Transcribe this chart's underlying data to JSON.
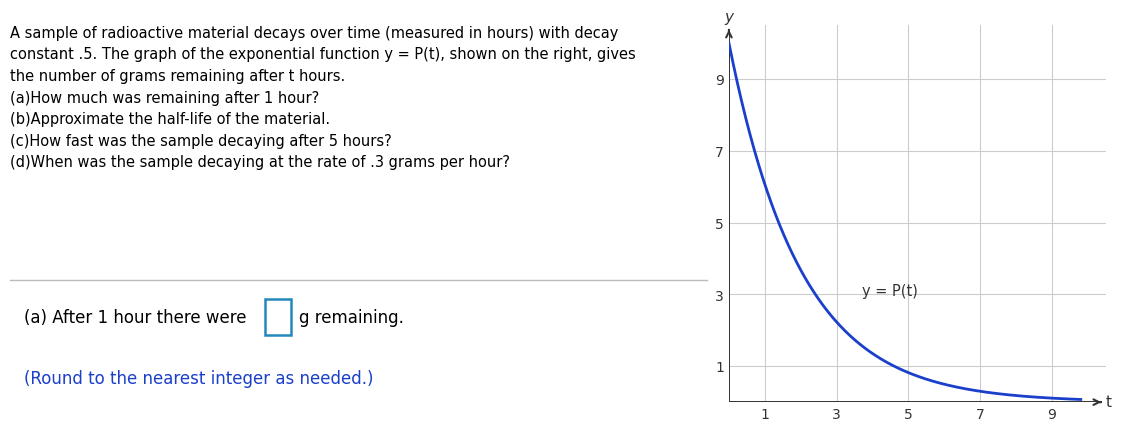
{
  "title_text": "A sample of radioactive material decays over time (measured in hours) with decay\nconstant .5. The graph of the exponential function y = P(t), shown on the right, gives\nthe number of grams remaining after t hours.\n(a)How much was remaining after 1 hour?\n(b)Approximate the half-life of the material.\n(c)How fast was the sample decaying after 5 hours?\n(d)When was the sample decaying at the rate of .3 grams per hour?",
  "bottom_line1": "(a) After 1 hour there were",
  "bottom_line2": "g remaining.",
  "bottom_line3": "(Round to the nearest integer as needed.)",
  "curve_color": "#1a3fcb",
  "curve_label": "y = P(t)",
  "decay_constant": 0.5,
  "initial_value": 10,
  "x_ticks": [
    1,
    3,
    5,
    7,
    9
  ],
  "y_ticks": [
    1,
    3,
    5,
    7,
    9
  ],
  "x_label": "t",
  "y_label": "y",
  "x_max": 10,
  "y_max": 10,
  "grid_color": "#cccccc",
  "axis_color": "#333333",
  "text_color": "#000000",
  "blue_text_color": "#1a3fcb",
  "box_border_color": "#2288bb",
  "background_color": "#ffffff",
  "separator_color": "#bbbbbb"
}
